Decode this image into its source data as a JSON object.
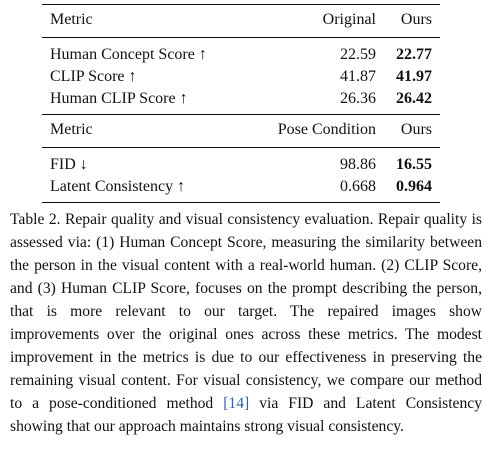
{
  "table": {
    "section1": {
      "header": {
        "metric": "Metric",
        "baseline": "Original",
        "ours": "Ours"
      },
      "rows": [
        {
          "metric": "Human Concept Score ↑",
          "baseline": "22.59",
          "ours": "22.77"
        },
        {
          "metric": "CLIP Score ↑",
          "baseline": "41.87",
          "ours": "41.97"
        },
        {
          "metric": "Human CLIP Score ↑",
          "baseline": "26.36",
          "ours": "26.42"
        }
      ]
    },
    "section2": {
      "header": {
        "metric": "Metric",
        "baseline": "Pose Condition",
        "ours": "Ours"
      },
      "rows": [
        {
          "metric": "FID ↓",
          "baseline": "98.86",
          "ours": "16.55"
        },
        {
          "metric": "Latent Consistency ↑",
          "baseline": "0.668",
          "ours": "0.964"
        }
      ]
    }
  },
  "caption": {
    "label": "Table 2.",
    "text_before_cite": " Repair quality and visual consistency evaluation. Repair quality is assessed via: (1) Human Concept Score, measuring the similarity between the person in the visual content with a real-world human. (2) CLIP Score, and (3) Human CLIP Score, focuses on the prompt describing the person, that is more relevant to our target. The repaired images show improvements over the original ones across these metrics. The modest improvement in the metrics is due to our effectiveness in preserving the remaining visual content. For visual consistency, we compare our method to a pose-conditioned method ",
    "cite": "[14]",
    "text_after_cite": " via FID and Latent Consistency showing that our approach maintains strong visual consistency."
  }
}
